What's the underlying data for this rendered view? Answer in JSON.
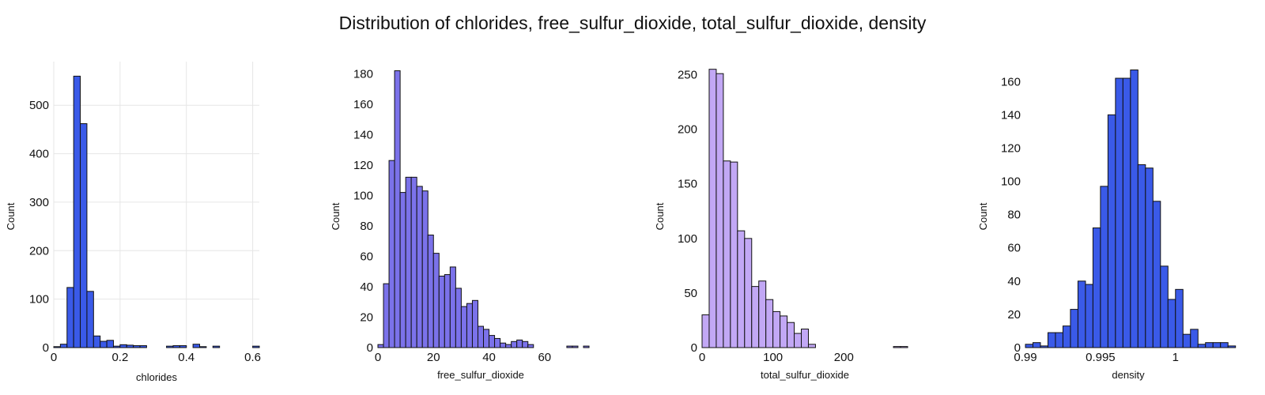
{
  "title": "Distribution of chlorides, free_sulfur_dioxide, total_sulfur_dioxide, density",
  "chart_data": [
    {
      "type": "bar",
      "xlabel": "chlorides",
      "ylabel": "Count",
      "xlim": [
        0,
        0.62
      ],
      "ylim": [
        0,
        590
      ],
      "xticks": [
        0,
        0.2,
        0.4,
        0.6
      ],
      "xtick_labels": [
        "0",
        "0.2",
        "0.4",
        "0.6"
      ],
      "yticks": [
        0,
        100,
        200,
        300,
        400,
        500
      ],
      "grid": true,
      "color": "#3a5ae8",
      "bin_start": 0.0,
      "bin_width": 0.02,
      "values": [
        2,
        7,
        124,
        560,
        462,
        116,
        24,
        13,
        15,
        3,
        6,
        5,
        4,
        4,
        0,
        0,
        0,
        3,
        4,
        4,
        0,
        7,
        2,
        0,
        3,
        0,
        0,
        0,
        0,
        0,
        3
      ]
    },
    {
      "type": "bar",
      "xlabel": "free_sulfur_dioxide",
      "ylabel": "Count",
      "xlim": [
        0,
        74
      ],
      "ylim": [
        0,
        188
      ],
      "xticks": [
        0,
        20,
        40,
        60
      ],
      "xtick_labels": [
        "0",
        "20",
        "40",
        "60"
      ],
      "yticks": [
        0,
        20,
        40,
        60,
        80,
        100,
        120,
        140,
        160,
        180
      ],
      "grid": false,
      "color": "#7b72ea",
      "bin_start": 0,
      "bin_width": 2,
      "values": [
        2,
        42,
        123,
        182,
        102,
        112,
        112,
        106,
        103,
        74,
        62,
        47,
        48,
        53,
        39,
        27,
        29,
        31,
        14,
        12,
        8,
        6,
        3,
        2,
        4,
        5,
        4,
        2,
        0,
        0,
        0,
        0,
        0,
        0,
        1,
        1,
        0,
        1
      ]
    },
    {
      "type": "bar",
      "xlabel": "total_sulfur_dioxide",
      "ylabel": "Count",
      "xlim": [
        0,
        290
      ],
      "ylim": [
        0,
        262
      ],
      "xticks": [
        0,
        100,
        200
      ],
      "xtick_labels": [
        "0",
        "100",
        "200"
      ],
      "yticks": [
        0,
        50,
        100,
        150,
        200,
        250
      ],
      "grid": false,
      "color": "#c2a8f5",
      "bin_start": 0,
      "bin_width": 10,
      "values": [
        30,
        255,
        251,
        171,
        170,
        107,
        100,
        56,
        61,
        44,
        33,
        29,
        23,
        13,
        17,
        3,
        0,
        0,
        0,
        0,
        0,
        0,
        0,
        0,
        0,
        0,
        0,
        1,
        1
      ]
    },
    {
      "type": "bar",
      "xlabel": "density",
      "ylabel": "Count",
      "xlim": [
        0.99,
        1.0037
      ],
      "ylim": [
        0,
        172
      ],
      "xticks": [
        0.99,
        0.995,
        1.0
      ],
      "xtick_labels": [
        "0.99",
        "0.995",
        "1"
      ],
      "yticks": [
        0,
        20,
        40,
        60,
        80,
        100,
        120,
        140,
        160
      ],
      "grid": false,
      "color": "#3a5ae8",
      "bin_start": 0.99,
      "bin_width": 0.0005,
      "values": [
        2,
        3,
        1,
        9,
        9,
        13,
        23,
        40,
        38,
        72,
        97,
        140,
        162,
        162,
        167,
        110,
        108,
        88,
        49,
        29,
        35,
        8,
        11,
        2,
        3,
        3,
        3,
        1
      ]
    }
  ]
}
